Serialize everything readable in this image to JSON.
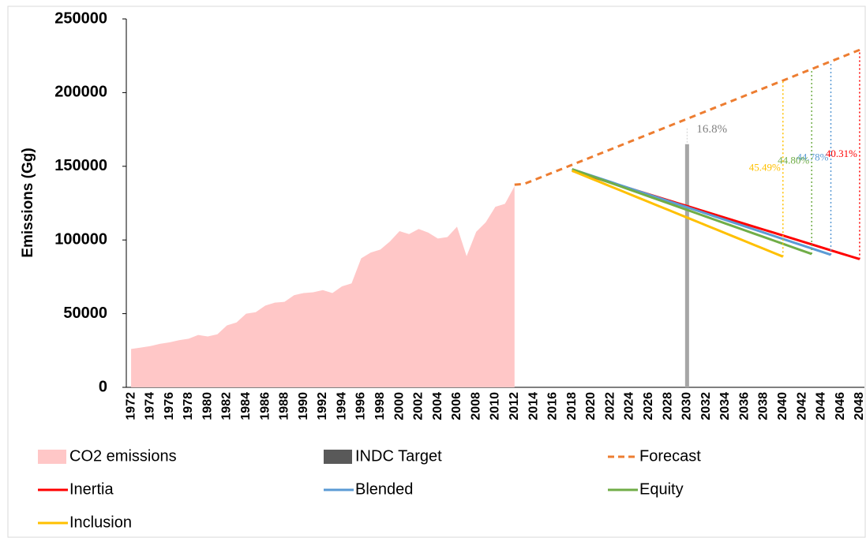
{
  "chart_data": {
    "type": "line",
    "y_label": "Emissions (Gg)",
    "ylim": [
      0,
      250000
    ],
    "yticks": [
      0,
      50000,
      100000,
      150000,
      200000,
      250000
    ],
    "grid": false,
    "categories": [
      "1972",
      null,
      "1974",
      null,
      "1976",
      null,
      "1978",
      null,
      "1980",
      null,
      "1982",
      null,
      "1984",
      null,
      "1986",
      null,
      "1988",
      null,
      "1990",
      null,
      "1992",
      null,
      "1994",
      null,
      "1996",
      null,
      "1998",
      null,
      "2000",
      null,
      "2002",
      null,
      "2004",
      null,
      "2006",
      null,
      "2008",
      null,
      "2010",
      null,
      "2012",
      null,
      "2014",
      null,
      "2016",
      null,
      "2018",
      null,
      "2020",
      null,
      "2022",
      null,
      "2024",
      null,
      "2026",
      null,
      "2028",
      null,
      "2030",
      null,
      "2032",
      null,
      "2034",
      null,
      "2036",
      null,
      "2038",
      null,
      "2040",
      null,
      "2042",
      null,
      "2044",
      null,
      "2046",
      null,
      "2048"
    ],
    "series": [
      {
        "name": "CO2 emissions",
        "type": "area",
        "color": "#ffc7c7",
        "values": [
          26000,
          27000,
          28000,
          29500,
          30500,
          32000,
          33000,
          35500,
          34500,
          36000,
          42000,
          44000,
          50000,
          51000,
          55500,
          57500,
          58000,
          62500,
          64000,
          64500,
          66000,
          64000,
          68500,
          70500,
          87500,
          91500,
          93500,
          99000,
          106000,
          104000,
          107500,
          105000,
          101000,
          102000,
          109000,
          89000,
          105500,
          112000,
          122500,
          124500,
          136500,
          null,
          null,
          null,
          null,
          null,
          null,
          null,
          null,
          null,
          null,
          null,
          null,
          null,
          null,
          null,
          null,
          null,
          null,
          null,
          null,
          null,
          null,
          null,
          null,
          null,
          null,
          null,
          null,
          null,
          null,
          null,
          null,
          null,
          null,
          null,
          null
        ]
      },
      {
        "name": "INDC Target",
        "type": "bar",
        "color": "#a6a6a6",
        "annotation": "16.8%",
        "values": [
          null,
          null,
          null,
          null,
          null,
          null,
          null,
          null,
          null,
          null,
          null,
          null,
          null,
          null,
          null,
          null,
          null,
          null,
          null,
          null,
          null,
          null,
          null,
          null,
          null,
          null,
          null,
          null,
          null,
          null,
          null,
          null,
          null,
          null,
          null,
          null,
          null,
          null,
          null,
          null,
          null,
          null,
          null,
          null,
          null,
          null,
          null,
          null,
          null,
          null,
          null,
          null,
          null,
          null,
          null,
          null,
          null,
          null,
          165000,
          null,
          null,
          null,
          null,
          null,
          null,
          null,
          null,
          null,
          null,
          null,
          null,
          null,
          null,
          null,
          null,
          null,
          null
        ]
      },
      {
        "name": "Forecast",
        "type": "line",
        "dash": true,
        "color": "#ed7d31",
        "values": [
          null,
          null,
          null,
          null,
          null,
          null,
          null,
          null,
          null,
          null,
          null,
          null,
          null,
          null,
          null,
          null,
          null,
          null,
          null,
          null,
          null,
          null,
          null,
          null,
          null,
          null,
          null,
          null,
          null,
          null,
          null,
          null,
          null,
          null,
          null,
          null,
          null,
          null,
          null,
          null,
          137500,
          138000,
          140600,
          143200,
          145800,
          148400,
          151000,
          153600,
          156200,
          158800,
          161400,
          164000,
          166600,
          169200,
          171800,
          174400,
          177000,
          179600,
          182200,
          184800,
          187400,
          190000,
          192600,
          195200,
          197800,
          200400,
          203000,
          205600,
          208200,
          210800,
          213400,
          216000,
          218600,
          221200,
          223800,
          226400,
          229000
        ]
      },
      {
        "name": "Inertia",
        "type": "line",
        "color": "#ff0000",
        "reduction_label": "40.31%",
        "values": [
          null,
          null,
          null,
          null,
          null,
          null,
          null,
          null,
          null,
          null,
          null,
          null,
          null,
          null,
          null,
          null,
          null,
          null,
          null,
          null,
          null,
          null,
          null,
          null,
          null,
          null,
          null,
          null,
          null,
          null,
          null,
          null,
          null,
          null,
          null,
          null,
          null,
          null,
          null,
          null,
          null,
          null,
          null,
          null,
          null,
          null,
          147000,
          145000,
          143000,
          141000,
          139000,
          137000,
          135000,
          133000,
          131000,
          129000,
          127000,
          125000,
          123000,
          121000,
          119000,
          117000,
          115000,
          113000,
          111000,
          109000,
          107000,
          105000,
          103000,
          101000,
          99000,
          97000,
          95000,
          93000,
          91000,
          89000,
          87000
        ]
      },
      {
        "name": "Blended",
        "type": "line",
        "color": "#5b9bd5",
        "reduction_label": "44.78%",
        "values": [
          null,
          null,
          null,
          null,
          null,
          null,
          null,
          null,
          null,
          null,
          null,
          null,
          null,
          null,
          null,
          null,
          null,
          null,
          null,
          null,
          null,
          null,
          null,
          null,
          null,
          null,
          null,
          null,
          null,
          null,
          null,
          null,
          null,
          null,
          null,
          null,
          null,
          null,
          null,
          null,
          null,
          null,
          null,
          null,
          null,
          null,
          148000,
          145850,
          143700,
          141550,
          139400,
          137250,
          135100,
          132950,
          130800,
          128650,
          126500,
          124350,
          122200,
          120050,
          117900,
          115750,
          113600,
          111450,
          109300,
          107150,
          105000,
          102850,
          100700,
          98550,
          96400,
          94250,
          92100,
          89950,
          null,
          null,
          null
        ]
      },
      {
        "name": "Equity",
        "type": "line",
        "color": "#70ad47",
        "reduction_label": "44.80%",
        "values": [
          null,
          null,
          null,
          null,
          null,
          null,
          null,
          null,
          null,
          null,
          null,
          null,
          null,
          null,
          null,
          null,
          null,
          null,
          null,
          null,
          null,
          null,
          null,
          null,
          null,
          null,
          null,
          null,
          null,
          null,
          null,
          null,
          null,
          null,
          null,
          null,
          null,
          null,
          null,
          null,
          null,
          null,
          null,
          null,
          null,
          null,
          148000,
          145700,
          143400,
          141100,
          138800,
          136500,
          134200,
          131900,
          129600,
          127300,
          125000,
          122700,
          120400,
          118100,
          115800,
          113500,
          111200,
          108900,
          106600,
          104300,
          102000,
          99700,
          97400,
          95100,
          92800,
          90500,
          null,
          null,
          null,
          null,
          null
        ]
      },
      {
        "name": "Inclusion",
        "type": "line",
        "color": "#ffc000",
        "reduction_label": "45.49%",
        "values": [
          null,
          null,
          null,
          null,
          null,
          null,
          null,
          null,
          null,
          null,
          null,
          null,
          null,
          null,
          null,
          null,
          null,
          null,
          null,
          null,
          null,
          null,
          null,
          null,
          null,
          null,
          null,
          null,
          null,
          null,
          null,
          null,
          null,
          null,
          null,
          null,
          null,
          null,
          null,
          null,
          null,
          null,
          null,
          null,
          null,
          null,
          147000,
          144350,
          141700,
          139050,
          136400,
          133750,
          131100,
          128450,
          125800,
          123150,
          120500,
          117850,
          115200,
          112550,
          109900,
          107250,
          104600,
          101950,
          99300,
          96650,
          94000,
          91350,
          88700,
          null,
          null,
          null,
          null,
          null,
          null,
          null,
          null
        ]
      }
    ]
  }
}
